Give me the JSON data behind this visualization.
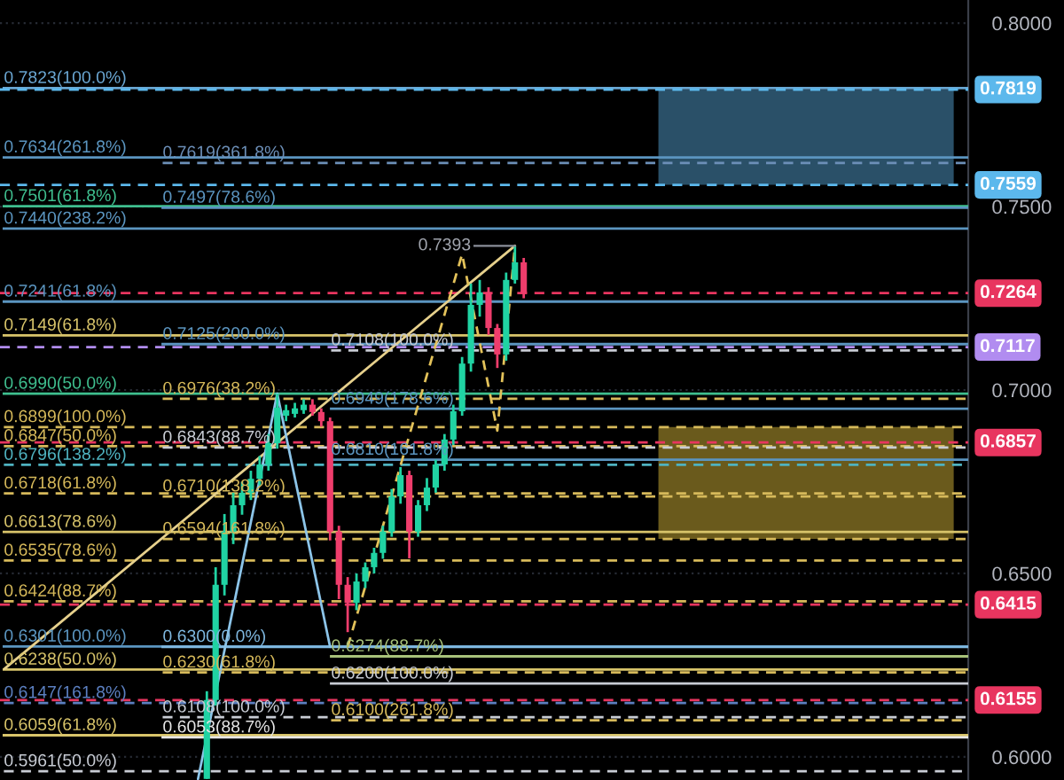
{
  "chart_data": {
    "type": "candlestick",
    "categories": [
      null,
      null,
      null,
      null,
      null,
      null,
      null,
      null,
      null,
      null,
      null,
      null,
      null,
      null,
      null,
      null,
      null,
      null,
      null,
      null,
      null,
      null,
      null,
      null,
      null,
      null,
      null,
      null,
      null,
      null,
      null,
      null,
      null,
      null,
      null,
      null,
      null,
      null,
      null,
      null,
      null,
      null,
      null,
      null,
      null,
      null,
      null,
      null,
      null,
      null,
      null,
      null,
      null,
      null,
      null,
      null,
      null,
      null,
      null,
      null,
      null,
      null,
      null,
      null,
      null,
      null,
      null,
      null,
      null,
      null,
      null,
      null,
      null,
      null,
      null,
      null,
      null,
      null,
      null,
      null,
      null,
      null,
      null,
      null,
      null,
      null,
      null,
      null,
      null,
      null,
      null,
      null,
      null,
      null,
      null,
      null,
      null,
      null,
      null,
      null,
      null,
      null,
      null,
      null,
      null,
      null,
      null,
      null,
      null,
      null
    ],
    "ohlc": [
      null,
      null,
      null,
      null,
      null,
      null,
      null,
      null,
      null,
      null,
      null,
      null,
      null,
      null,
      null,
      null,
      null,
      null,
      null,
      null,
      null,
      null,
      null,
      [
        0.594,
        0.6179,
        0.594,
        0.6155
      ],
      [
        0.6155,
        0.6517,
        0.614,
        0.6469
      ],
      [
        0.6469,
        0.6662,
        0.644,
        0.6614
      ],
      [
        0.6614,
        0.672,
        0.658,
        0.6686
      ],
      [
        0.6686,
        0.675,
        0.666,
        0.672
      ],
      [
        0.672,
        0.678,
        0.67,
        0.6758
      ],
      [
        0.6758,
        0.682,
        0.674,
        0.6797
      ],
      [
        0.6797,
        0.688,
        0.678,
        0.6855
      ],
      [
        0.6855,
        0.699,
        0.684,
        0.6952
      ],
      [
        0.693,
        0.696,
        0.6915,
        0.6945
      ],
      [
        0.6935,
        0.6965,
        0.6925,
        0.695
      ],
      [
        0.6945,
        0.6975,
        0.6935,
        0.696
      ],
      [
        0.696,
        0.6975,
        0.693,
        0.694
      ],
      [
        0.694,
        0.695,
        0.69,
        0.6915
      ],
      [
        0.6915,
        0.6925,
        0.659,
        0.6614
      ],
      [
        0.6614,
        0.663,
        0.643,
        0.6469
      ],
      [
        0.6469,
        0.649,
        0.634,
        0.642
      ],
      [
        0.642,
        0.65,
        0.64,
        0.6478
      ],
      [
        0.6478,
        0.653,
        0.646,
        0.6517
      ],
      [
        0.6517,
        0.657,
        0.65,
        0.6556
      ],
      [
        0.6556,
        0.663,
        0.654,
        0.6614
      ],
      [
        0.6614,
        0.673,
        0.66,
        0.671
      ],
      [
        0.671,
        0.679,
        0.669,
        0.6768
      ],
      [
        0.6768,
        0.678,
        0.6541,
        0.6614
      ],
      [
        0.6614,
        0.67,
        0.66,
        0.6686
      ],
      [
        0.6686,
        0.676,
        0.667,
        0.6734
      ],
      [
        0.6734,
        0.681,
        0.672,
        0.6797
      ],
      [
        0.6797,
        0.688,
        0.678,
        0.6865
      ],
      [
        0.6865,
        0.696,
        0.685,
        0.6942
      ],
      [
        0.6942,
        0.709,
        0.693,
        0.7072
      ],
      [
        0.7072,
        0.729,
        0.705,
        0.7232
      ],
      [
        0.7232,
        0.73,
        0.72,
        0.7266
      ],
      [
        0.7266,
        0.728,
        0.715,
        0.7169
      ],
      [
        0.7169,
        0.718,
        0.706,
        0.7097
      ],
      [
        0.7097,
        0.732,
        0.708,
        0.73
      ],
      [
        0.73,
        0.7393,
        0.729,
        0.7348
      ],
      [
        0.7348,
        0.736,
        0.725,
        0.7264
      ],
      null,
      null,
      null,
      null,
      null,
      null,
      null,
      null,
      null,
      null,
      null,
      null,
      null,
      null,
      null,
      null,
      null,
      null,
      null,
      null,
      null,
      null,
      null,
      null,
      null,
      null,
      null,
      null,
      null,
      null,
      null,
      null,
      null,
      null,
      null,
      null,
      null,
      null,
      null,
      null,
      null,
      null,
      null,
      null,
      null,
      null,
      null,
      null,
      null,
      null
    ],
    "colors": [
      null,
      null,
      null,
      null,
      null,
      null,
      null,
      null,
      null,
      null,
      null,
      null,
      null,
      null,
      null,
      null,
      null,
      null,
      null,
      null,
      null,
      null,
      null,
      "#20d3a3",
      "#20d3a3",
      "#20d3a3",
      "#20d3a3",
      "#20d3a3",
      "#20d3a3",
      "#20d3a3",
      "#20d3a3",
      "#20d3a3",
      "#20d3a3",
      "#20d3a3",
      "#20d3a3",
      "#ef3d6c",
      "#ef3d6c",
      "#ef3d6c",
      "#ef3d6c",
      "#ef3d6c",
      "#20d3a3",
      "#20d3a3",
      "#20d3a3",
      "#20d3a3",
      "#20d3a3",
      "#20d3a3",
      "#ef3d6c",
      "#20d3a3",
      "#20d3a3",
      "#20d3a3",
      "#20d3a3",
      "#20d3a3",
      "#20d3a3",
      "#20d3a3",
      "#20d3a3",
      "#ef3d6c",
      "#ef3d6c",
      "#20d3a3",
      "#20d3a3",
      "#ef3d6c",
      null,
      null,
      null,
      null,
      null,
      null,
      null,
      null,
      null,
      null,
      null,
      null,
      null,
      null,
      null,
      null,
      null,
      null,
      null,
      null,
      null,
      null,
      null,
      null,
      null,
      null,
      null,
      null,
      null,
      null,
      null,
      null,
      null,
      null,
      null,
      null,
      null,
      null,
      null,
      null,
      null,
      null,
      null,
      null,
      null,
      null,
      null,
      null,
      null,
      null
    ],
    "series": [
      {
        "type": "line",
        "color": "#e6d08c",
        "line_style": "solid",
        "values": [
          0.624,
          null,
          null,
          null,
          null,
          null,
          null,
          null,
          null,
          null,
          null,
          null,
          null,
          null,
          null,
          null,
          null,
          null,
          null,
          null,
          null,
          null,
          null,
          null,
          null,
          null,
          null,
          null,
          null,
          null,
          null,
          null,
          null,
          null,
          null,
          null,
          null,
          null,
          null,
          null,
          null,
          null,
          null,
          null,
          null,
          null,
          null,
          null,
          null,
          null,
          null,
          null,
          null,
          null,
          null,
          null,
          null,
          null,
          0.7393,
          null,
          null,
          null,
          null,
          null,
          null,
          null,
          null,
          null,
          null,
          null,
          null,
          null,
          null,
          null,
          null,
          null,
          null,
          null,
          null,
          null,
          null,
          null,
          null,
          null,
          null,
          null,
          null,
          null,
          null,
          null,
          null,
          null,
          null,
          null,
          null,
          null,
          null,
          null,
          null,
          null,
          null,
          null,
          null,
          null,
          null,
          null,
          null,
          null,
          null,
          null
        ]
      },
      {
        "type": "line",
        "color": "#8cc4e8",
        "line_style": "solid",
        "values": [
          null,
          null,
          null,
          null,
          null,
          null,
          null,
          null,
          null,
          null,
          null,
          null,
          null,
          null,
          null,
          null,
          null,
          null,
          null,
          null,
          null,
          null,
          0.594,
          null,
          null,
          null,
          null,
          null,
          null,
          null,
          null,
          0.699,
          null,
          null,
          null,
          null,
          null,
          0.63,
          null,
          null,
          null,
          null,
          null,
          null,
          null,
          null,
          null,
          null,
          null,
          null,
          null,
          null,
          null,
          null,
          null,
          null,
          null,
          null,
          null,
          null,
          null,
          null,
          null,
          null,
          null,
          null,
          null,
          null,
          null,
          null,
          null,
          null,
          null,
          null,
          null,
          null,
          null,
          null,
          null,
          null,
          null,
          null,
          null,
          null,
          null,
          null,
          null,
          null,
          null,
          null,
          null,
          null,
          null,
          null,
          null,
          null,
          null,
          null,
          null,
          null,
          null,
          null,
          null,
          null,
          null,
          null,
          null,
          null,
          null,
          null
        ]
      },
      {
        "type": "line",
        "color": "#e3c25a",
        "line_style": "dashed",
        "values": [
          null,
          null,
          null,
          null,
          null,
          null,
          null,
          null,
          null,
          null,
          null,
          null,
          null,
          null,
          null,
          null,
          null,
          null,
          null,
          null,
          null,
          null,
          null,
          null,
          null,
          null,
          null,
          null,
          null,
          null,
          null,
          null,
          null,
          null,
          null,
          null,
          null,
          null,
          null,
          0.63,
          null,
          null,
          null,
          null,
          null,
          null,
          null,
          null,
          null,
          null,
          null,
          null,
          0.737,
          null,
          null,
          null,
          0.6889,
          null,
          0.7393,
          null,
          null,
          null,
          null,
          null,
          null,
          null,
          null,
          null,
          null,
          null,
          null,
          null,
          null,
          null,
          null,
          null,
          null,
          null,
          null,
          null,
          null,
          null,
          null,
          null,
          null,
          null,
          null,
          null,
          null,
          null,
          null,
          null,
          null,
          null,
          null,
          null,
          null,
          null,
          null,
          null,
          null,
          null,
          null,
          null,
          null,
          null,
          null,
          null,
          null,
          null
        ]
      }
    ],
    "ylim": [
      0.5937,
      0.8063
    ],
    "yticks": [
      {
        "value": 0.6,
        "label": "0.6000"
      },
      {
        "value": 0.65,
        "label": "0.6500"
      },
      {
        "value": 0.7,
        "label": "0.7000"
      },
      {
        "value": 0.75,
        "label": "0.7500"
      },
      {
        "value": 0.8,
        "label": "0.8000"
      }
    ],
    "grid": "y",
    "tick_labels": "y",
    "bands": [
      {
        "axis": "y",
        "from": 0.7559,
        "to": 0.7819,
        "color": "#2a5068"
      },
      {
        "axis": "y",
        "from": 0.6594,
        "to": 0.6899,
        "color": "#6a5a1c"
      }
    ],
    "ref_lines": [
      {
        "axis": "y",
        "value": 0.7823,
        "color": "#6aa6d2",
        "line_style": "solid"
      },
      {
        "axis": "y",
        "value": 0.7819,
        "color": "#5cb8ec",
        "line_style": "dashed",
        "label": "0.7819"
      },
      {
        "axis": "y",
        "value": 0.7634,
        "color": "#5b95c0",
        "line_style": "solid"
      },
      {
        "axis": "y",
        "value": 0.7619,
        "color": "#6c8fb8",
        "line_style": "dashed"
      },
      {
        "axis": "y",
        "value": 0.7559,
        "color": "#5cb8ec",
        "line_style": "dashed",
        "label": "0.7559"
      },
      {
        "axis": "y",
        "value": 0.7501,
        "color": "#3fbf8f",
        "line_style": "solid"
      },
      {
        "axis": "y",
        "value": 0.7497,
        "color": "#5b95c0",
        "line_style": "solid"
      },
      {
        "axis": "y",
        "value": 0.744,
        "color": "#5b95c0",
        "line_style": "solid"
      },
      {
        "axis": "y",
        "value": 0.7264,
        "color": "#e8355f",
        "line_style": "dashed",
        "label": "0.7264"
      },
      {
        "axis": "y",
        "value": 0.7241,
        "color": "#5b95c0",
        "line_style": "solid"
      },
      {
        "axis": "y",
        "value": 0.7149,
        "color": "#d8c46a",
        "line_style": "solid"
      },
      {
        "axis": "y",
        "value": 0.7125,
        "color": "#5b95c0",
        "line_style": "solid"
      },
      {
        "axis": "y",
        "value": 0.7117,
        "color": "#b18cf0",
        "line_style": "dashed",
        "label": "0.7117"
      },
      {
        "axis": "y",
        "value": 0.7108,
        "color": "#c8ccd4",
        "line_style": "dashed"
      },
      {
        "axis": "y",
        "value": 0.699,
        "color": "#3fbf8f",
        "line_style": "solid"
      },
      {
        "axis": "y",
        "value": 0.6976,
        "color": "#d6b95a",
        "line_style": "dashed"
      },
      {
        "axis": "y",
        "value": 0.6949,
        "color": "#5b95c0",
        "line_style": "solid"
      },
      {
        "axis": "y",
        "value": 0.6899,
        "color": "#d6b95a",
        "line_style": "dashed"
      },
      {
        "axis": "y",
        "value": 0.6857,
        "color": "#e8355f",
        "line_style": "dashed",
        "label": "0.6857"
      },
      {
        "axis": "y",
        "value": 0.6847,
        "color": "#d6b95a",
        "line_style": "dashed"
      },
      {
        "axis": "y",
        "value": 0.6843,
        "color": "#c8ccd4",
        "line_style": "dashed"
      },
      {
        "axis": "y",
        "value": 0.681,
        "color": "#5b95c0",
        "line_style": "solid"
      },
      {
        "axis": "y",
        "value": 0.6796,
        "color": "#4fb3c0",
        "line_style": "dashed"
      },
      {
        "axis": "y",
        "value": 0.6718,
        "color": "#d6b95a",
        "line_style": "dashed"
      },
      {
        "axis": "y",
        "value": 0.671,
        "color": "#d6b95a",
        "line_style": "dashed"
      },
      {
        "axis": "y",
        "value": 0.6613,
        "color": "#d8c46a",
        "line_style": "solid"
      },
      {
        "axis": "y",
        "value": 0.6594,
        "color": "#d6b95a",
        "line_style": "dashed"
      },
      {
        "axis": "y",
        "value": 0.6535,
        "color": "#d6b95a",
        "line_style": "dashed"
      },
      {
        "axis": "y",
        "value": 0.6424,
        "color": "#d6b95a",
        "line_style": "dashed"
      },
      {
        "axis": "y",
        "value": 0.6415,
        "color": "#e8355f",
        "line_style": "dashed",
        "label": "0.6415"
      },
      {
        "axis": "y",
        "value": 0.6301,
        "color": "#5b95c0",
        "line_style": "solid"
      },
      {
        "axis": "y",
        "value": 0.63,
        "color": "#7fb8e0",
        "line_style": "solid"
      },
      {
        "axis": "y",
        "value": 0.6274,
        "color": "#a8c27a",
        "line_style": "solid"
      },
      {
        "axis": "y",
        "value": 0.6238,
        "color": "#d8c46a",
        "line_style": "solid"
      },
      {
        "axis": "y",
        "value": 0.623,
        "color": "#d6b95a",
        "line_style": "dashed"
      },
      {
        "axis": "y",
        "value": 0.62,
        "color": "#c8ccd4",
        "line_style": "solid"
      },
      {
        "axis": "y",
        "value": 0.6155,
        "color": "#e8355f",
        "line_style": "dashed",
        "label": "0.6155"
      },
      {
        "axis": "y",
        "value": 0.6147,
        "color": "#5b7fc0",
        "line_style": "dashed"
      },
      {
        "axis": "y",
        "value": 0.6108,
        "color": "#c8ccd4",
        "line_style": "dashed"
      },
      {
        "axis": "y",
        "value": 0.61,
        "color": "#d6b95a",
        "line_style": "dashed"
      },
      {
        "axis": "y",
        "value": 0.6059,
        "color": "#d8c46a",
        "line_style": "solid"
      },
      {
        "axis": "y",
        "value": 0.6053,
        "color": "#e6e6e6",
        "line_style": "solid"
      },
      {
        "axis": "y",
        "value": 0.5961,
        "color": "#c8ccd4",
        "line_style": "dashed"
      }
    ],
    "annotations": [
      {
        "text": "0.7823(100.0%)",
        "y": 0.7823
      },
      {
        "text": "0.7634(261.8%)",
        "y": 0.7634
      },
      {
        "text": "0.7619(361.8%)",
        "y": 0.7619
      },
      {
        "text": "0.7501(61.8%)",
        "y": 0.7501
      },
      {
        "text": "0.7497(78.6%)",
        "y": 0.7497
      },
      {
        "text": "0.7440(238.2%)",
        "y": 0.744
      },
      "0.7393",
      {
        "text": "0.7241(61.8%)",
        "y": 0.7241
      },
      {
        "text": "0.7149(61.8%)",
        "y": 0.7149
      },
      {
        "text": "0.7125(200.0%)",
        "y": 0.7125
      },
      {
        "text": "0.7108(100.0%)",
        "y": 0.7108
      },
      {
        "text": "0.6990(50.0%)",
        "y": 0.699
      },
      {
        "text": "0.6976(38.2%)",
        "y": 0.6976
      },
      {
        "text": "0.6949(178.6%)",
        "y": 0.6949
      },
      {
        "text": "0.6899(100.0%)",
        "y": 0.6899
      },
      {
        "text": "0.6847(50.0%)",
        "y": 0.6847
      },
      {
        "text": "0.6843(88.7%)",
        "y": 0.6843
      },
      {
        "text": "0.6810(161.8%)",
        "y": 0.681
      },
      {
        "text": "0.6796(138.2%)",
        "y": 0.6796
      },
      {
        "text": "0.6718(61.8%)",
        "y": 0.6718
      },
      {
        "text": "0.6710(138.2%)",
        "y": 0.671
      },
      {
        "text": "0.6613(78.6%)",
        "y": 0.6613
      },
      {
        "text": "0.6594(161.8%)",
        "y": 0.6594
      },
      {
        "text": "0.6535(78.6%)",
        "y": 0.6535
      },
      {
        "text": "0.6424(88.7%)",
        "y": 0.6424
      },
      {
        "text": "0.6301(100.0%)",
        "y": 0.6301
      },
      {
        "text": "0.6300(0.0%)",
        "y": 0.63
      },
      {
        "text": "0.6274(88.7%)",
        "y": 0.6274
      },
      {
        "text": "0.6238(50.0%)",
        "y": 0.6238
      },
      {
        "text": "0.6230(61.8%)",
        "y": 0.623
      },
      {
        "text": "0.6200(100.0%)",
        "y": 0.62
      },
      {
        "text": "0.6147(161.8%)",
        "y": 0.6147
      },
      {
        "text": "0.6108(100.0%)",
        "y": 0.6108
      },
      {
        "text": "0.6100(261.8%)",
        "y": 0.61
      },
      {
        "text": "0.6059(61.8%)",
        "y": 0.6059
      },
      {
        "text": "0.6053(88.7%)",
        "y": 0.6053
      },
      {
        "text": "0.5961(50.0%)",
        "y": 0.5961
      }
    ]
  }
}
